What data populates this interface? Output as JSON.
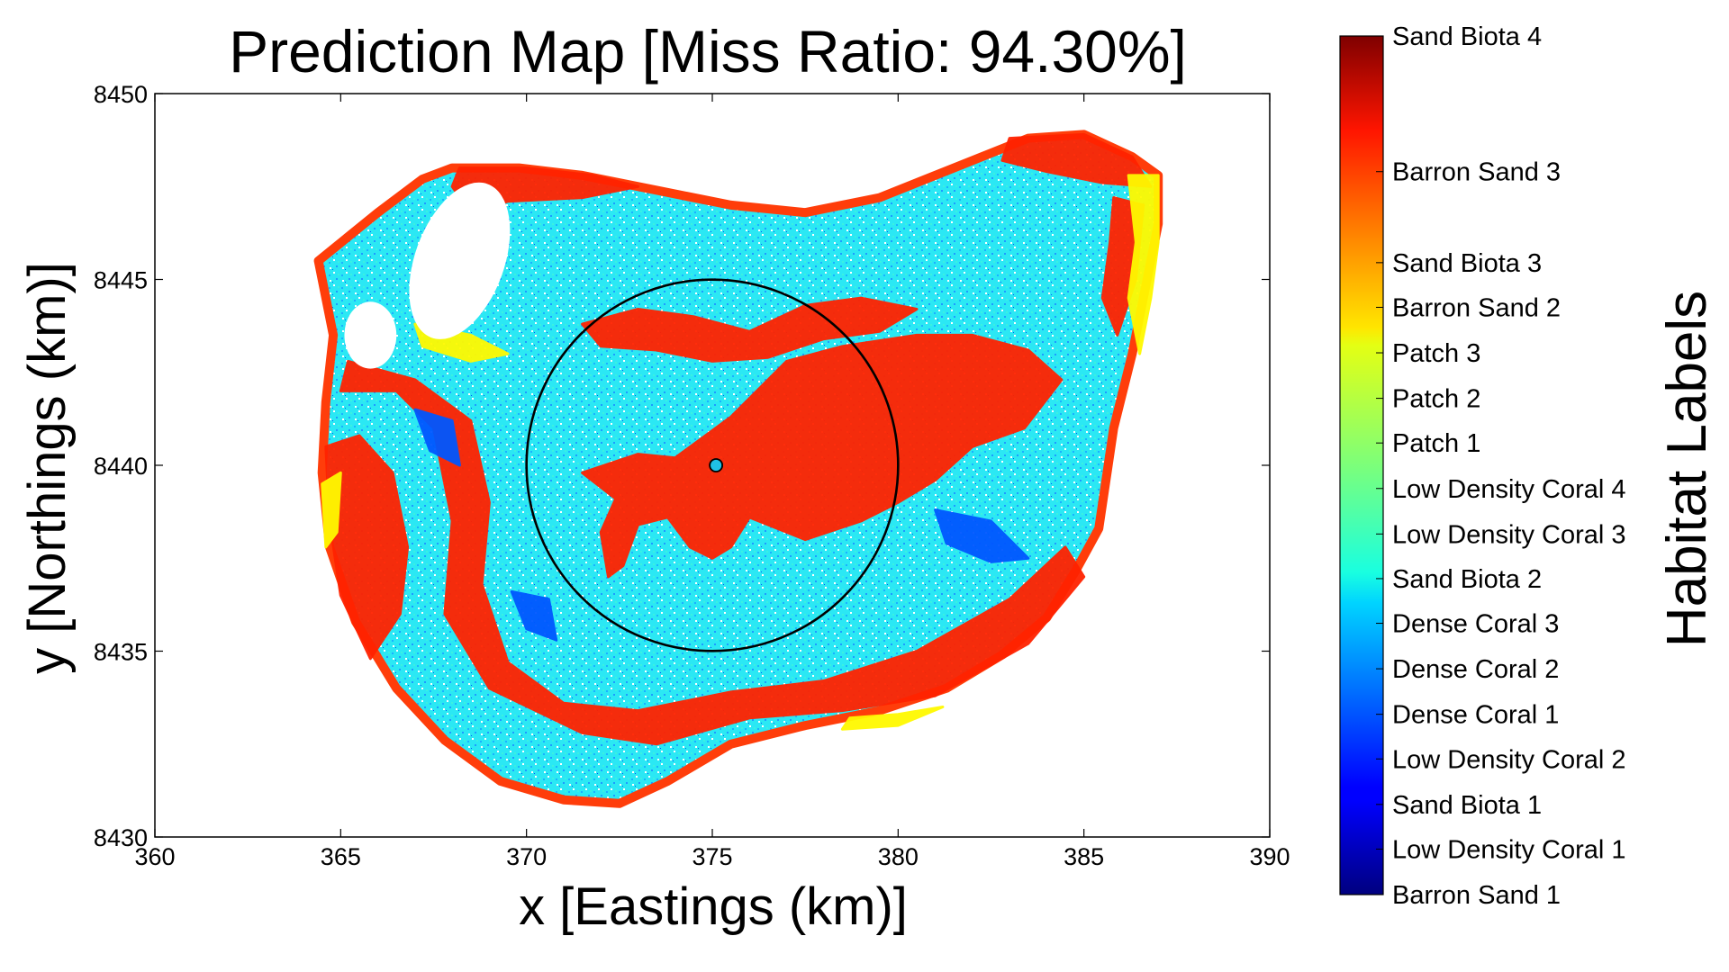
{
  "chart_data": {
    "type": "scatter",
    "title": "Prediction Map [Miss Ratio: 94.30%]",
    "xlabel": "x [Eastings (km)]",
    "ylabel": "y [Northings (km)]",
    "xlim": [
      360,
      390
    ],
    "ylim": [
      8430,
      8450
    ],
    "xticks": [
      360,
      365,
      370,
      375,
      380,
      385,
      390
    ],
    "yticks": [
      8430,
      8435,
      8440,
      8445,
      8450
    ],
    "grid": false,
    "colorbar": {
      "title": "Habitat Labels",
      "colormap": "jet",
      "labels": [
        {
          "label": "Barron Sand 1",
          "value": 0.0
        },
        {
          "label": "Low Density Coral 1",
          "value": 0.053
        },
        {
          "label": "Sand Biota 1",
          "value": 0.105
        },
        {
          "label": "Low Density Coral 2",
          "value": 0.158
        },
        {
          "label": "Dense Coral 1",
          "value": 0.21
        },
        {
          "label": "Dense Coral 2",
          "value": 0.263
        },
        {
          "label": "Dense Coral 3",
          "value": 0.316
        },
        {
          "label": "Sand Biota 2",
          "value": 0.368
        },
        {
          "label": "Low Density Coral 3",
          "value": 0.42
        },
        {
          "label": "Low Density Coral 4",
          "value": 0.473
        },
        {
          "label": "Patch 1",
          "value": 0.526
        },
        {
          "label": "Patch 2",
          "value": 0.578
        },
        {
          "label": "Patch 3",
          "value": 0.631
        },
        {
          "label": "Barron Sand 2",
          "value": 0.684
        },
        {
          "label": "Sand Biota 3",
          "value": 0.736
        },
        {
          "label": "Barron Sand 3",
          "value": 0.842
        },
        {
          "label": "Sand Biota 4",
          "value": 1.0
        }
      ]
    },
    "annotations": [
      {
        "type": "circle",
        "center": [
          375,
          8440
        ],
        "radius_km": 5,
        "color": "#000000"
      },
      {
        "type": "marker",
        "x": 375.1,
        "y": 8440.0,
        "color": "#1fc0e6"
      }
    ],
    "regions": {
      "reef_outline": [
        [
          364.4,
          8445.5
        ],
        [
          366.0,
          8446.8
        ],
        [
          367.2,
          8447.7
        ],
        [
          368.0,
          8448.0
        ],
        [
          369.8,
          8448.0
        ],
        [
          371.5,
          8447.8
        ],
        [
          373.5,
          8447.4
        ],
        [
          375.5,
          8447.0
        ],
        [
          377.5,
          8446.8
        ],
        [
          379.5,
          8447.2
        ],
        [
          381.5,
          8448.0
        ],
        [
          383.5,
          8448.8
        ],
        [
          385.0,
          8448.9
        ],
        [
          386.3,
          8448.3
        ],
        [
          387.0,
          8447.8
        ],
        [
          387.0,
          8446.5
        ],
        [
          386.7,
          8445.0
        ],
        [
          386.3,
          8443.0
        ],
        [
          385.8,
          8441.0
        ],
        [
          385.4,
          8438.3
        ],
        [
          384.8,
          8437.2
        ],
        [
          384.0,
          8435.9
        ],
        [
          382.8,
          8434.9
        ],
        [
          381.3,
          8434.0
        ],
        [
          379.5,
          8433.4
        ],
        [
          377.5,
          8433.0
        ],
        [
          375.5,
          8432.5
        ],
        [
          373.8,
          8431.5
        ],
        [
          372.5,
          8430.9
        ],
        [
          371.0,
          8431.0
        ],
        [
          369.3,
          8431.5
        ],
        [
          367.8,
          8432.6
        ],
        [
          366.5,
          8434.0
        ],
        [
          365.4,
          8435.8
        ],
        [
          364.7,
          8437.8
        ],
        [
          364.5,
          8439.8
        ],
        [
          364.6,
          8441.7
        ],
        [
          364.8,
          8443.5
        ],
        [
          364.4,
          8445.5
        ]
      ],
      "holes": [
        {
          "center": [
            368.2,
            8445.5
          ],
          "rx": 1.2,
          "ry": 2.2,
          "rotation": 20
        },
        {
          "center": [
            365.8,
            8443.5
          ],
          "rx": 0.7,
          "ry": 0.9,
          "rotation": 0
        }
      ],
      "habitat_patches": [
        {
          "label": "Barron Sand 3",
          "polygon": [
            [
              365.0,
              8442.0
            ],
            [
              366.5,
              8442.0
            ],
            [
              367.5,
              8441.0
            ],
            [
              368.0,
              8438.5
            ],
            [
              367.8,
              8436.0
            ],
            [
              369.0,
              8434.0
            ],
            [
              371.5,
              8432.8
            ],
            [
              373.5,
              8432.5
            ],
            [
              376.0,
              8433.2
            ],
            [
              378.5,
              8433.4
            ],
            [
              381.0,
              8433.8
            ],
            [
              383.5,
              8435.2
            ],
            [
              385.0,
              8437.0
            ],
            [
              384.5,
              8437.8
            ],
            [
              383.0,
              8436.4
            ],
            [
              380.5,
              8435.0
            ],
            [
              378.0,
              8434.2
            ],
            [
              375.5,
              8433.9
            ],
            [
              373.0,
              8433.4
            ],
            [
              371.0,
              8433.6
            ],
            [
              369.5,
              8434.7
            ],
            [
              368.8,
              8436.8
            ],
            [
              369.0,
              8439.0
            ],
            [
              368.5,
              8441.2
            ],
            [
              367.0,
              8442.3
            ],
            [
              365.2,
              8442.8
            ]
          ]
        },
        {
          "label": "Barron Sand 3",
          "polygon": [
            [
              364.6,
              8440.5
            ],
            [
              365.5,
              8440.8
            ],
            [
              366.4,
              8439.8
            ],
            [
              366.8,
              8437.8
            ],
            [
              366.6,
              8436.0
            ],
            [
              365.8,
              8434.8
            ],
            [
              365.0,
              8436.5
            ],
            [
              364.7,
              8438.5
            ]
          ]
        },
        {
          "label": "Barron Sand 3",
          "polygon": [
            [
              371.5,
              8439.8
            ],
            [
              373.0,
              8440.3
            ],
            [
              374.0,
              8440.2
            ],
            [
              375.5,
              8441.3
            ],
            [
              377.0,
              8442.8
            ],
            [
              378.5,
              8443.2
            ],
            [
              380.5,
              8443.5
            ],
            [
              382.0,
              8443.5
            ],
            [
              383.5,
              8443.1
            ],
            [
              384.4,
              8442.3
            ],
            [
              383.4,
              8441.0
            ],
            [
              382.0,
              8440.5
            ],
            [
              381.0,
              8439.6
            ],
            [
              380.0,
              8439.0
            ],
            [
              379.0,
              8438.5
            ],
            [
              377.5,
              8438.0
            ],
            [
              376.0,
              8438.6
            ],
            [
              375.5,
              8437.8
            ],
            [
              375.0,
              8437.5
            ],
            [
              374.4,
              8437.8
            ],
            [
              373.8,
              8438.6
            ],
            [
              373.0,
              8438.4
            ],
            [
              372.6,
              8437.3
            ],
            [
              372.2,
              8437.0
            ],
            [
              372.0,
              8438.2
            ],
            [
              372.4,
              8439.1
            ]
          ]
        },
        {
          "label": "Barron Sand 3",
          "polygon": [
            [
              371.5,
              8443.8
            ],
            [
              373.0,
              8444.2
            ],
            [
              374.5,
              8444.0
            ],
            [
              376.0,
              8443.6
            ],
            [
              377.5,
              8444.3
            ],
            [
              379.0,
              8444.5
            ],
            [
              380.5,
              8444.2
            ],
            [
              379.5,
              8443.6
            ],
            [
              378.0,
              8443.4
            ],
            [
              376.5,
              8442.9
            ],
            [
              375.0,
              8442.8
            ],
            [
              373.5,
              8443.1
            ],
            [
              372.0,
              8443.2
            ]
          ]
        },
        {
          "label": "Barron Sand 3",
          "polygon": [
            [
              368.2,
              8448.0
            ],
            [
              370.0,
              8448.0
            ],
            [
              371.8,
              8447.8
            ],
            [
              373.0,
              8447.5
            ],
            [
              371.5,
              8447.2
            ],
            [
              369.5,
              8447.1
            ],
            [
              368.5,
              8446.8
            ],
            [
              368.0,
              8447.5
            ]
          ]
        },
        {
          "label": "Barron Sand 3",
          "polygon": [
            [
              383.0,
              8448.8
            ],
            [
              385.0,
              8448.9
            ],
            [
              386.3,
              8448.3
            ],
            [
              386.8,
              8447.5
            ],
            [
              385.5,
              8447.6
            ],
            [
              384.0,
              8447.9
            ],
            [
              382.8,
              8448.2
            ]
          ]
        },
        {
          "label": "Barron Sand 3",
          "polygon": [
            [
              385.8,
              8447.2
            ],
            [
              386.6,
              8447.0
            ],
            [
              386.4,
              8445.0
            ],
            [
              385.9,
              8443.5
            ],
            [
              385.5,
              8444.5
            ],
            [
              385.7,
              8446.0
            ]
          ]
        },
        {
          "label": "Patch 3",
          "polygon": [
            [
              386.2,
              8447.8
            ],
            [
              387.0,
              8447.8
            ],
            [
              387.0,
              8446.0
            ],
            [
              386.8,
              8444.5
            ],
            [
              386.5,
              8443.0
            ],
            [
              386.2,
              8444.5
            ],
            [
              386.4,
              8446.0
            ]
          ]
        },
        {
          "label": "Patch 3",
          "polygon": [
            [
              364.5,
              8439.5
            ],
            [
              365.0,
              8439.8
            ],
            [
              364.9,
              8438.2
            ],
            [
              364.6,
              8437.8
            ]
          ]
        },
        {
          "label": "Patch 3",
          "polygon": [
            [
              367.0,
              8443.8
            ],
            [
              368.5,
              8443.5
            ],
            [
              369.5,
              8443.0
            ],
            [
              368.5,
              8442.8
            ],
            [
              367.2,
              8443.2
            ]
          ]
        },
        {
          "label": "Patch 3",
          "polygon": [
            [
              378.5,
              8432.9
            ],
            [
              380.0,
              8433.0
            ],
            [
              381.2,
              8433.5
            ],
            [
              380.0,
              8433.3
            ],
            [
              378.7,
              8433.2
            ]
          ]
        },
        {
          "label": "Dense Coral 1",
          "polygon": [
            [
              367.0,
              8441.5
            ],
            [
              368.0,
              8441.2
            ],
            [
              368.2,
              8440.0
            ],
            [
              367.4,
              8440.4
            ]
          ]
        },
        {
          "label": "Dense Coral 1",
          "polygon": [
            [
              381.0,
              8438.8
            ],
            [
              382.5,
              8438.5
            ],
            [
              383.5,
              8437.5
            ],
            [
              382.5,
              8437.4
            ],
            [
              381.3,
              8437.9
            ]
          ]
        },
        {
          "label": "Dense Coral 1",
          "polygon": [
            [
              369.6,
              8436.6
            ],
            [
              370.6,
              8436.4
            ],
            [
              370.8,
              8435.3
            ],
            [
              370.0,
              8435.6
            ]
          ]
        }
      ]
    }
  }
}
